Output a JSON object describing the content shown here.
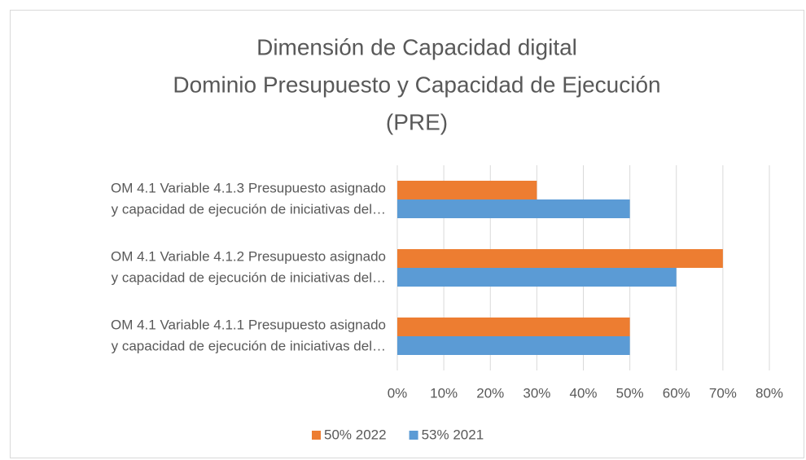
{
  "chart_data": {
    "type": "hbar",
    "title": [
      "Dimensión de Capacidad digital",
      "Dominio Presupuesto y Capacidad de Ejecución",
      "(PRE)"
    ],
    "categories": [
      [
        "OM 4.1 Variable 4.1.3 Presupuesto asignado",
        "y capacidad de ejecución de  iniciativas del…"
      ],
      [
        "OM 4.1 Variable 4.1.2 Presupuesto asignado",
        "y capacidad de ejecución de  iniciativas del…"
      ],
      [
        "OM 4.1 Variable 4.1.1  Presupuesto asignado",
        "y capacidad de ejecución de iniciativas del…"
      ]
    ],
    "series": [
      {
        "name": "50% 2022",
        "color": "#ed7d31",
        "values": [
          30,
          70,
          50
        ]
      },
      {
        "name": "53% 2021",
        "color": "#5b9bd5",
        "values": [
          50,
          60,
          50
        ]
      }
    ],
    "xlim": [
      0,
      80
    ],
    "xticks": [
      {
        "value": 0,
        "label": "0%"
      },
      {
        "value": 10,
        "label": "10%"
      },
      {
        "value": 20,
        "label": "20%"
      },
      {
        "value": 30,
        "label": "30%"
      },
      {
        "value": 40,
        "label": "40%"
      },
      {
        "value": 50,
        "label": "50%"
      },
      {
        "value": 60,
        "label": "60%"
      },
      {
        "value": 70,
        "label": "70%"
      },
      {
        "value": 80,
        "label": "80%"
      }
    ],
    "grid": true,
    "legend": "bottom"
  }
}
